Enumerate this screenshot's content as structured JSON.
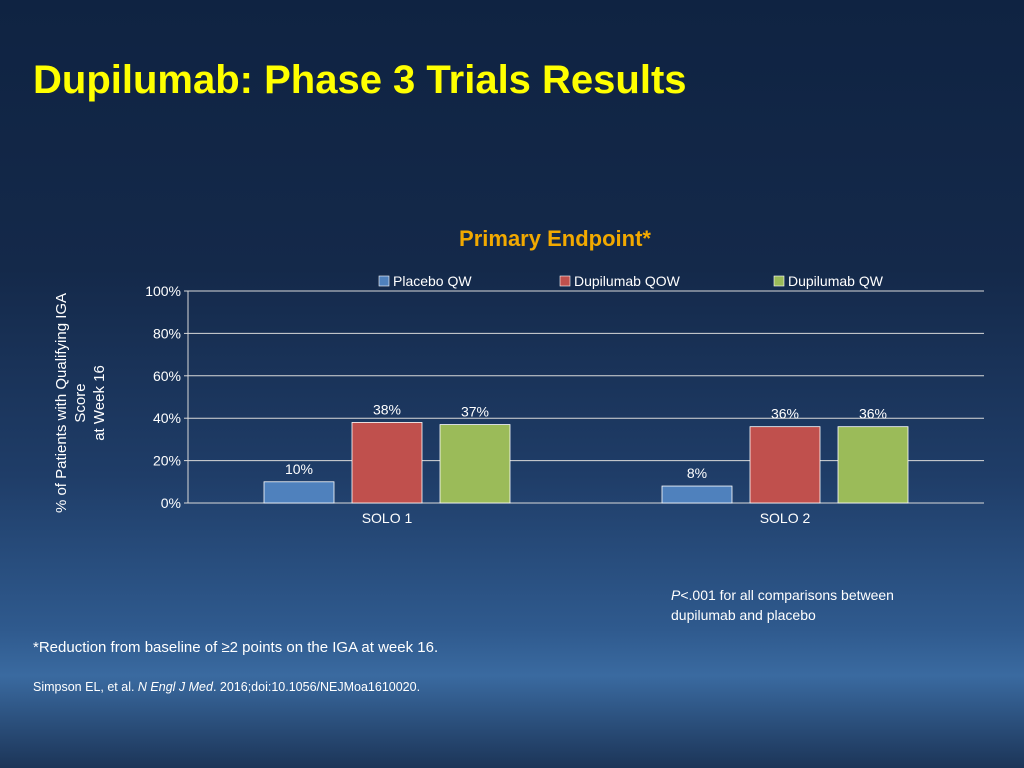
{
  "slide": {
    "title": "Dupilumab: Phase 3 Trials Results",
    "footnote": "*Reduction from baseline of ≥2 points on the IGA at week 16.",
    "pnote": {
      "p_italic": "P",
      "text": "<.001 for all comparisons between dupilumab and placebo"
    },
    "citation": {
      "authors": "Simpson EL, et al. ",
      "journal": "N Engl J Med",
      "rest": ". 2016;doi:10.1056/NEJMoa1610020."
    }
  },
  "chart_data": {
    "type": "bar",
    "title": "Primary Endpoint*",
    "ylabel_lines": [
      "% of Patients with Qualifying IGA",
      "Score",
      "at Week 16"
    ],
    "xlabel": "",
    "categories": [
      "SOLO 1",
      "SOLO 2"
    ],
    "series": [
      {
        "name": "Placebo QW",
        "values": [
          10,
          8
        ],
        "labels": [
          "10%",
          "8%"
        ],
        "color": "#4f81bd"
      },
      {
        "name": "Dupilumab QOW",
        "values": [
          38,
          36
        ],
        "labels": [
          "38%",
          "36%"
        ],
        "color": "#c0504d"
      },
      {
        "name": "Dupilumab QW",
        "values": [
          37,
          36
        ],
        "labels": [
          "37%",
          "36%"
        ],
        "color": "#9bbb59"
      }
    ],
    "ylim": [
      0,
      100
    ],
    "yticks": [
      0,
      20,
      40,
      60,
      80,
      100
    ],
    "ytick_labels": [
      "0%",
      "20%",
      "40%",
      "60%",
      "80%",
      "100%"
    ],
    "grid": true,
    "legend_position": "top",
    "title_color": "#f2a900"
  }
}
